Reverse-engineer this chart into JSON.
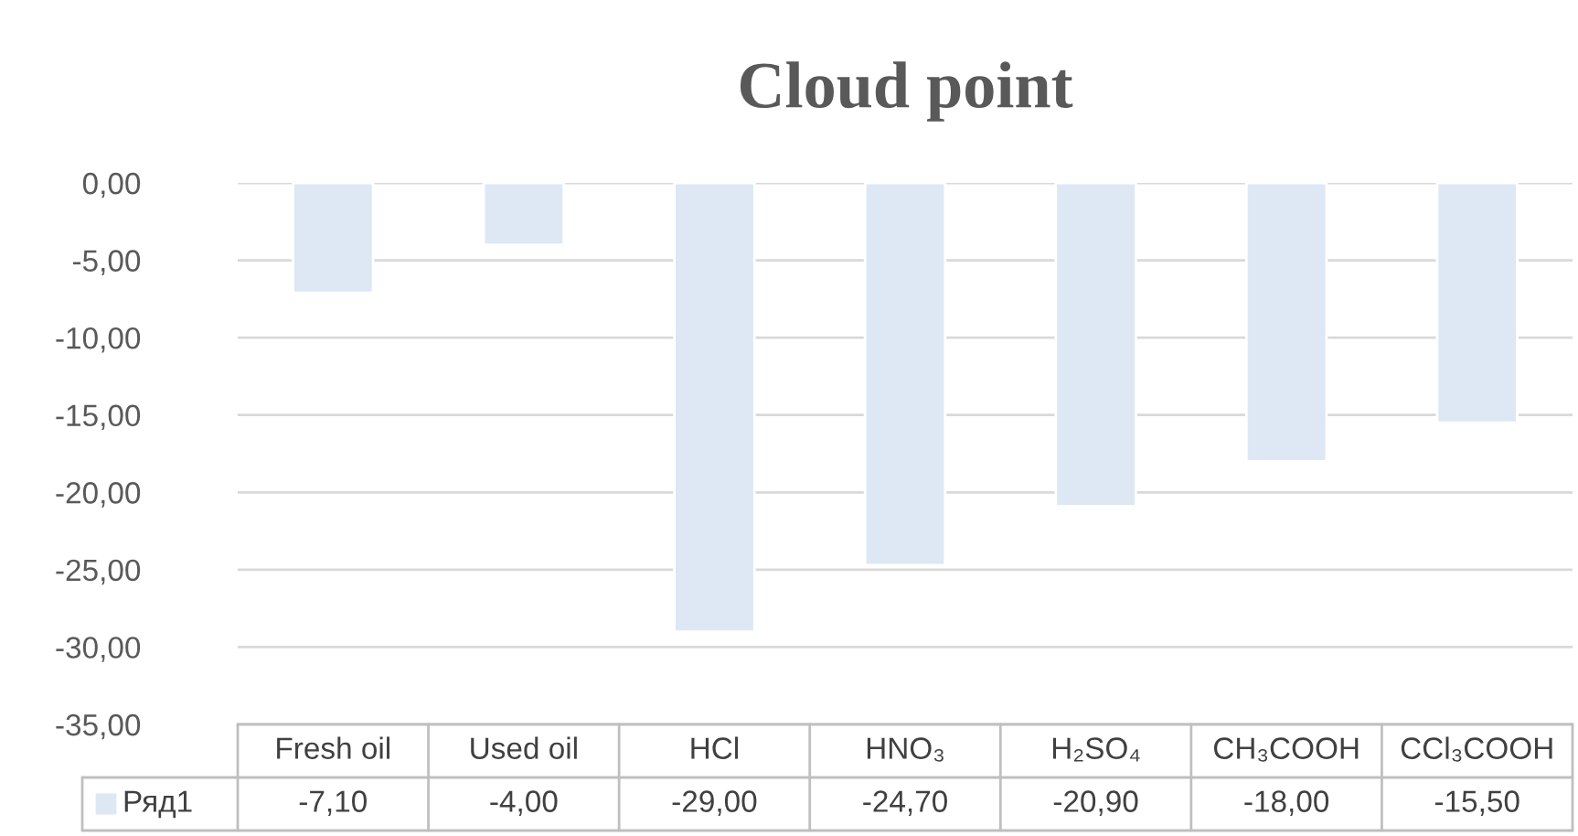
{
  "chart_data": {
    "type": "bar",
    "title": "Cloud point",
    "categories": [
      "Fresh oil",
      "Used oil",
      "HCl",
      "HNO₃",
      "H₂SO₄",
      "CH₃COOH",
      "CCl₃COOH"
    ],
    "series": [
      {
        "name": "Ряд1",
        "color": "#dde8f4",
        "values": [
          -7.1,
          -4.0,
          -29.0,
          -24.7,
          -20.9,
          -18.0,
          -15.5
        ],
        "value_labels": [
          "-7,10",
          "-4,00",
          "-29,00",
          "-24,70",
          "-20,90",
          "-18,00",
          "-15,50"
        ]
      }
    ],
    "ylim": [
      -35,
      0
    ],
    "yticks": [
      {
        "value": 0,
        "label": "0,00"
      },
      {
        "value": -5,
        "label": "-5,00"
      },
      {
        "value": -10,
        "label": "-10,00"
      },
      {
        "value": -15,
        "label": "-15,00"
      },
      {
        "value": -20,
        "label": "-20,00"
      },
      {
        "value": -25,
        "label": "-25,00"
      },
      {
        "value": -30,
        "label": "-30,00"
      },
      {
        "value": -35,
        "label": "-35,00"
      }
    ],
    "grid": "y"
  }
}
